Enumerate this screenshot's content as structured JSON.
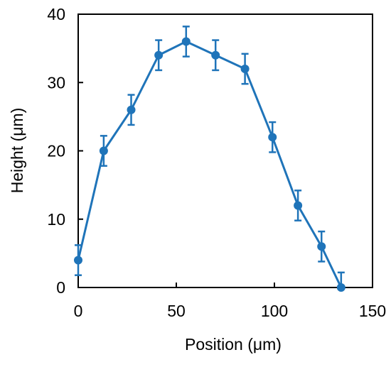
{
  "chart_data": {
    "type": "line",
    "title": "",
    "xlabel": "Position  (μm)",
    "ylabel": "Height (μm)",
    "xlim": [
      0,
      150
    ],
    "ylim": [
      0,
      40
    ],
    "x_ticks": [
      0,
      50,
      100,
      150
    ],
    "y_ticks": [
      0,
      10,
      20,
      30,
      40
    ],
    "x_tick_labels": [
      "0",
      "50",
      "100",
      "150"
    ],
    "y_tick_labels": [
      "0",
      "10",
      "20",
      "30",
      "40"
    ],
    "grid": false,
    "legend": "none",
    "color": "#1f74b9",
    "series": [
      {
        "x": [
          0,
          13,
          27,
          41,
          55,
          70,
          85,
          99,
          112,
          124,
          134
        ],
        "y": [
          4,
          20,
          26,
          34,
          36,
          34,
          32,
          22,
          12,
          6,
          0
        ],
        "error": [
          2.2,
          2.2,
          2.2,
          2.2,
          2.2,
          2.2,
          2.2,
          2.2,
          2.2,
          2.2,
          2.2
        ]
      }
    ]
  }
}
